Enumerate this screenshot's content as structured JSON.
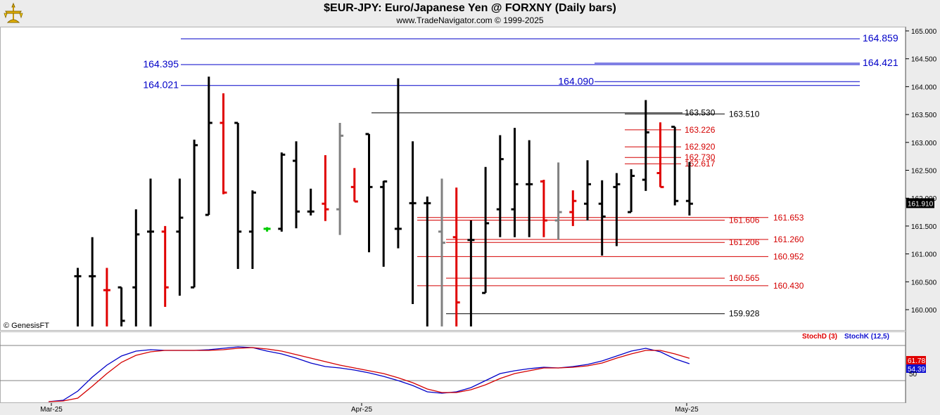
{
  "header": {
    "title": "$EUR-JPY:  Euro/Japanese Yen @ FORXNY  (Daily bars)",
    "subtitle": "www.TradeNavigator.com © 1999-2025"
  },
  "watermark": "© GenesisFT",
  "colors": {
    "up_bar": "#000000",
    "down_bar": "#e00000",
    "inside_bar": "#808080",
    "blue_line": "#0000c8",
    "red_line": "#d40000",
    "stoch_d": "#e00000",
    "stoch_k": "#1010d0",
    "header_bg": "#ececec"
  },
  "chart_data": [
    {
      "type": "ohlc",
      "title": "$EUR-JPY:  Euro/Japanese Yen @ FORXNY  (Daily bars)",
      "y_axis_side": "right",
      "ylim": [
        159.7,
        165.1
      ],
      "yticks": [
        "165.000",
        "164.500",
        "164.000",
        "163.500",
        "163.000",
        "162.500",
        "162.000",
        "161.500",
        "161.000",
        "160.500",
        "160.000"
      ],
      "last_price": "161.910",
      "bars": [
        {
          "o": 160.6,
          "h": 160.75,
          "l": 159.7,
          "c": 160.6,
          "color": "up"
        },
        {
          "o": 160.6,
          "h": 161.3,
          "l": 159.7,
          "c": 160.6,
          "color": "up"
        },
        {
          "o": 160.35,
          "h": 160.75,
          "l": 159.7,
          "c": 160.35,
          "color": "down"
        },
        {
          "o": 160.4,
          "h": 160.4,
          "l": 159.7,
          "c": 159.8,
          "color": "up"
        },
        {
          "o": 160.4,
          "h": 161.8,
          "l": 159.7,
          "c": 161.35,
          "color": "up"
        },
        {
          "o": 161.4,
          "h": 162.35,
          "l": 159.7,
          "c": 161.4,
          "color": "up"
        },
        {
          "o": 161.4,
          "h": 161.5,
          "l": 160.05,
          "c": 160.4,
          "color": "down"
        },
        {
          "o": 161.4,
          "h": 162.35,
          "l": 160.25,
          "c": 161.65,
          "color": "up"
        },
        {
          "o": 160.4,
          "h": 163.05,
          "l": 160.4,
          "c": 162.95,
          "color": "up"
        },
        {
          "o": 161.7,
          "h": 164.18,
          "l": 161.7,
          "c": 163.35,
          "color": "up"
        },
        {
          "o": 163.35,
          "h": 163.88,
          "l": 162.07,
          "c": 162.1,
          "color": "down"
        },
        {
          "o": 163.35,
          "h": 163.35,
          "l": 160.73,
          "c": 161.4,
          "color": "up"
        },
        {
          "o": 161.4,
          "h": 162.14,
          "l": 160.73,
          "c": 162.1,
          "color": "up"
        },
        {
          "o": 161.45,
          "h": 161.48,
          "l": 161.4,
          "c": 161.45,
          "color": "green"
        },
        {
          "o": 161.45,
          "h": 162.82,
          "l": 161.4,
          "c": 162.78,
          "color": "up"
        },
        {
          "o": 162.67,
          "h": 163.02,
          "l": 161.46,
          "c": 161.76,
          "color": "up"
        },
        {
          "o": 161.76,
          "h": 162.17,
          "l": 161.69,
          "c": 161.76,
          "color": "up"
        },
        {
          "o": 161.9,
          "h": 162.77,
          "l": 161.59,
          "c": 161.8,
          "color": "down"
        },
        {
          "o": 161.8,
          "h": 163.35,
          "l": 161.34,
          "c": 163.12,
          "color": "inside"
        },
        {
          "o": 162.2,
          "h": 162.54,
          "l": 161.94,
          "c": 161.94,
          "color": "down"
        },
        {
          "o": 163.15,
          "h": 163.15,
          "l": 161.03,
          "c": 162.2,
          "color": "up"
        },
        {
          "o": 162.2,
          "h": 162.31,
          "l": 160.77,
          "c": 162.3,
          "color": "up"
        },
        {
          "o": 161.45,
          "h": 164.15,
          "l": 161.1,
          "c": 161.45,
          "color": "up"
        },
        {
          "o": 161.91,
          "h": 163.02,
          "l": 160.1,
          "c": 161.91,
          "color": "up"
        },
        {
          "o": 161.91,
          "h": 162.03,
          "l": 159.7,
          "c": 161.91,
          "color": "up"
        },
        {
          "o": 161.4,
          "h": 162.35,
          "l": 159.7,
          "c": 161.2,
          "color": "inside"
        },
        {
          "o": 161.3,
          "h": 162.19,
          "l": 159.7,
          "c": 160.13,
          "color": "down"
        },
        {
          "o": 161.25,
          "h": 161.6,
          "l": 159.7,
          "c": 161.25,
          "color": "up"
        },
        {
          "o": 160.3,
          "h": 162.56,
          "l": 160.3,
          "c": 161.55,
          "color": "up"
        },
        {
          "o": 161.8,
          "h": 163.13,
          "l": 161.3,
          "c": 162.7,
          "color": "up"
        },
        {
          "o": 161.8,
          "h": 163.26,
          "l": 161.3,
          "c": 162.25,
          "color": "up"
        },
        {
          "o": 162.25,
          "h": 163.04,
          "l": 161.3,
          "c": 162.25,
          "color": "up"
        },
        {
          "o": 162.3,
          "h": 162.33,
          "l": 161.3,
          "c": 161.6,
          "color": "down"
        },
        {
          "o": 161.6,
          "h": 162.64,
          "l": 161.25,
          "c": 161.75,
          "color": "inside"
        },
        {
          "o": 161.75,
          "h": 162.14,
          "l": 161.5,
          "c": 161.95,
          "color": "down"
        },
        {
          "o": 161.9,
          "h": 162.68,
          "l": 161.6,
          "c": 162.25,
          "color": "up"
        },
        {
          "o": 161.9,
          "h": 162.32,
          "l": 160.97,
          "c": 161.67,
          "color": "up"
        },
        {
          "o": 162.2,
          "h": 162.45,
          "l": 161.14,
          "c": 162.25,
          "color": "up"
        },
        {
          "o": 161.75,
          "h": 162.52,
          "l": 161.75,
          "c": 162.4,
          "color": "up"
        },
        {
          "o": 162.33,
          "h": 163.76,
          "l": 162.13,
          "c": 163.18,
          "color": "up"
        },
        {
          "o": 162.45,
          "h": 163.36,
          "l": 162.2,
          "c": 162.2,
          "color": "down"
        },
        {
          "o": 163.28,
          "h": 163.28,
          "l": 161.87,
          "c": 161.95,
          "color": "up"
        },
        {
          "o": 161.95,
          "h": 162.65,
          "l": 161.69,
          "c": 161.9,
          "color": "up"
        }
      ],
      "levels": [
        {
          "price": 164.859,
          "label": "164.859",
          "color": "blue",
          "label_side": "right"
        },
        {
          "price": 164.421,
          "label": "164.421",
          "color": "blue",
          "label_side": "right"
        },
        {
          "price": 164.395,
          "label": "164.395",
          "color": "blue",
          "label_side": "left"
        },
        {
          "price": 164.09,
          "label": "164.090",
          "color": "blue",
          "label_side": "middle"
        },
        {
          "price": 164.021,
          "label": "164.021",
          "color": "blue",
          "label_side": "left"
        },
        {
          "price": 163.53,
          "label": "163.530",
          "color": "black",
          "label_side": "inner"
        },
        {
          "price": 163.51,
          "label": "163.510",
          "color": "black",
          "label_side": "outer"
        },
        {
          "price": 163.226,
          "label": "163.226",
          "color": "red",
          "label_side": "inner"
        },
        {
          "price": 162.92,
          "label": "162.920",
          "color": "red",
          "label_side": "inner"
        },
        {
          "price": 162.73,
          "label": "162.730",
          "color": "red",
          "label_side": "inner"
        },
        {
          "price": 162.617,
          "label": "162.617",
          "color": "red",
          "label_side": "inner"
        },
        {
          "price": 161.653,
          "label": "161.653",
          "color": "red",
          "label_side": "outer"
        },
        {
          "price": 161.606,
          "label": "161.606",
          "color": "red",
          "label_side": "inner"
        },
        {
          "price": 161.26,
          "label": "161.260",
          "color": "red",
          "label_side": "outer"
        },
        {
          "price": 161.206,
          "label": "161.206",
          "color": "red",
          "label_side": "inner"
        },
        {
          "price": 160.952,
          "label": "160.952",
          "color": "red",
          "label_side": "outer"
        },
        {
          "price": 160.565,
          "label": "160.565",
          "color": "red",
          "label_side": "inner"
        },
        {
          "price": 160.43,
          "label": "160.430",
          "color": "red",
          "label_side": "outer"
        },
        {
          "price": 159.928,
          "label": "159.928",
          "color": "black",
          "label_side": "inner"
        }
      ],
      "x_tick_labels": [
        {
          "label": "Mar-25",
          "bar_index": -1
        },
        {
          "label": "Apr-25",
          "bar_index": 21
        },
        {
          "label": "May-25",
          "bar_index": 43
        }
      ]
    },
    {
      "type": "line",
      "title": "",
      "ylim": [
        0,
        100
      ],
      "legend": [
        "StochD (3)",
        "StochK (12,5)"
      ],
      "legend_position": "top-right",
      "reference_level": 80,
      "series": [
        {
          "name": "StochK (12,5)",
          "color": "blue",
          "values": [
            0,
            2,
            15,
            35,
            52,
            65,
            72,
            74,
            73,
            73,
            73,
            74,
            76,
            78,
            77,
            72,
            68,
            62,
            55,
            50,
            48,
            45,
            41,
            36,
            30,
            23,
            14,
            12,
            14,
            20,
            30,
            40,
            44,
            47,
            49,
            48,
            50,
            53,
            58,
            65,
            72,
            76,
            71,
            61,
            54
          ]
        },
        {
          "name": "StochD (3)",
          "color": "red",
          "values": [
            0,
            1,
            5,
            22,
            40,
            56,
            66,
            71,
            73,
            73,
            73,
            73,
            74,
            76,
            77,
            75,
            72,
            67,
            62,
            57,
            52,
            48,
            44,
            40,
            34,
            27,
            18,
            13,
            13,
            17,
            24,
            33,
            40,
            44,
            48,
            48,
            49,
            51,
            55,
            62,
            68,
            73,
            73,
            68,
            61.78
          ]
        }
      ],
      "last_values": [
        "61.78",
        "54.39"
      ],
      "right_axis_label": "50"
    }
  ]
}
